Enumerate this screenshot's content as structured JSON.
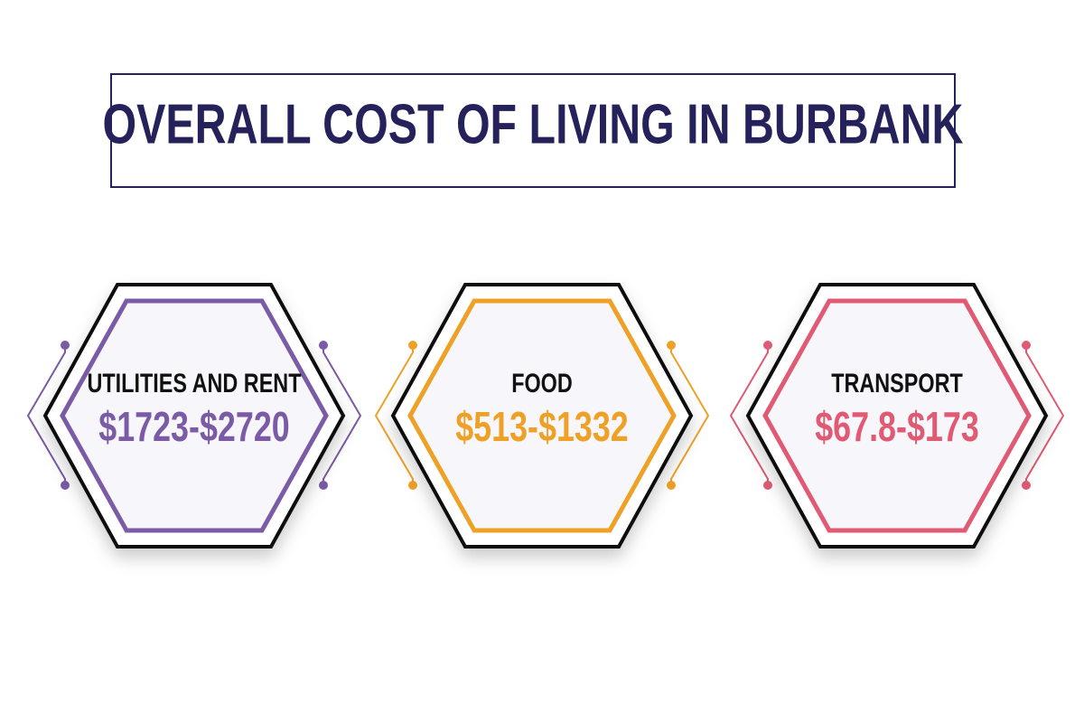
{
  "header": {
    "title": "OVERALL COST OF LIVING IN BURBANK"
  },
  "cards": [
    {
      "label": "UTILITIES AND RENT",
      "range": "$1723-$2720",
      "color": "#7b5aa6"
    },
    {
      "label": "FOOD",
      "range": "$513-$1332",
      "color": "#eea126"
    },
    {
      "label": "TRANSPORT",
      "range": "$67.8-$173",
      "color": "#e05a74"
    }
  ]
}
